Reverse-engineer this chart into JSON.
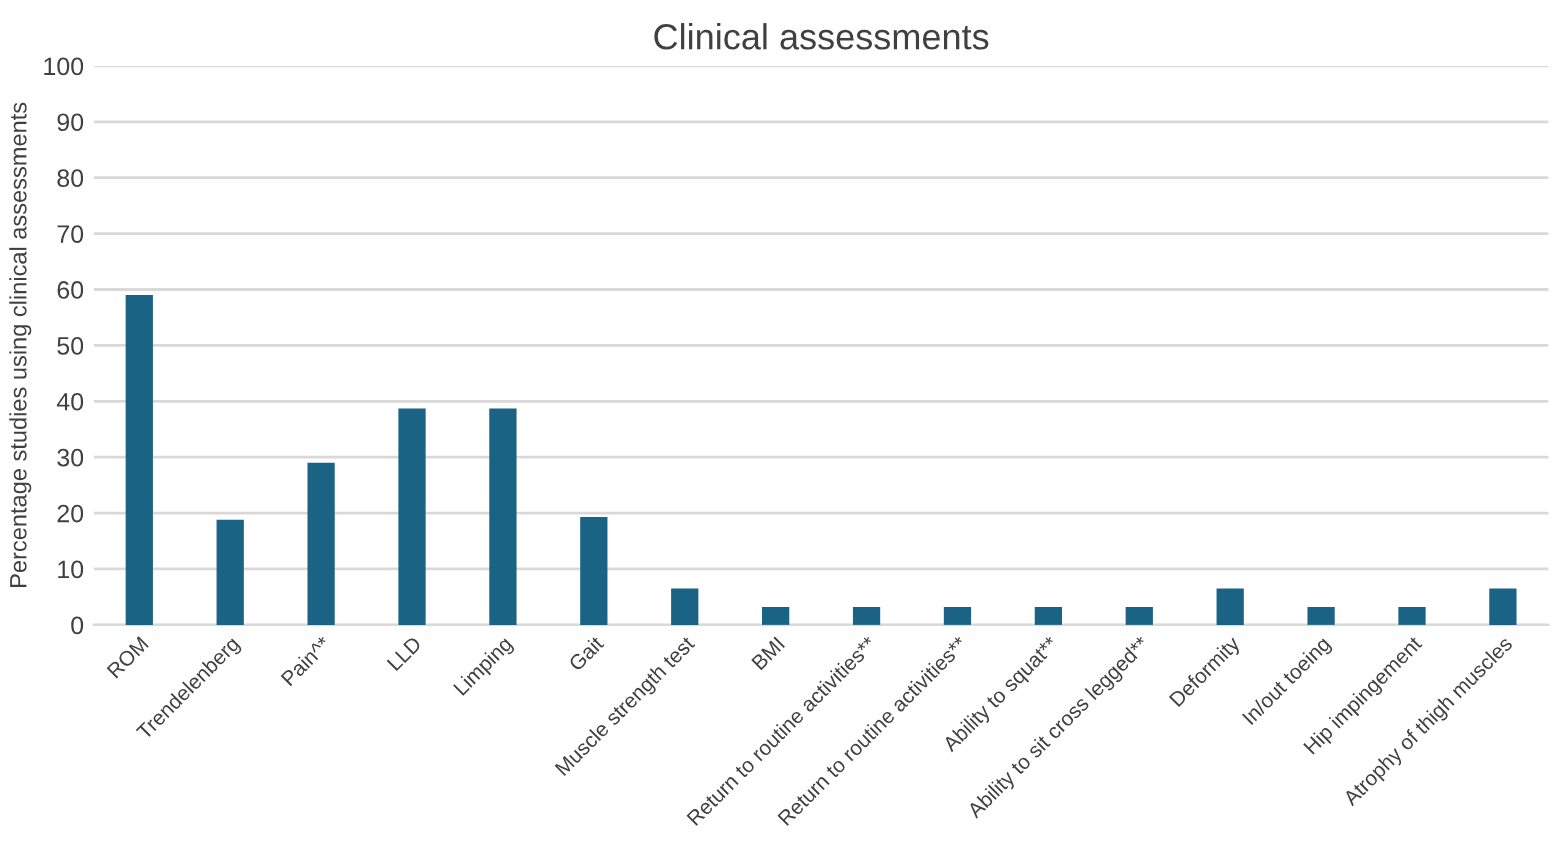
{
  "chart_data": {
    "type": "bar",
    "title": "Clinical assessments",
    "ylabel": "Percentage studies using clinical assessments",
    "categories": [
      "ROM",
      "Trendelenberg",
      "Pain^*",
      "LLD",
      "Limping",
      "Gait",
      "Muscle strength test",
      "BMI",
      "Return to routine activities**",
      "Return to routine activities**",
      "Ability to squat**",
      "Ability to sit cross legged**",
      "Deformity",
      "In/out toeing",
      "Hip impingement",
      "Atrophy of thigh muscles"
    ],
    "values": [
      59,
      18.8,
      29,
      38.7,
      38.7,
      19.3,
      6.5,
      3.2,
      3.2,
      3.2,
      3.2,
      3.2,
      6.5,
      3.2,
      3.2,
      6.5
    ],
    "color": "#1b6384",
    "ylim": [
      0,
      100
    ],
    "yticks": [
      0,
      10,
      20,
      30,
      40,
      50,
      60,
      70,
      80,
      90,
      100
    ],
    "grid": "y",
    "legend": false
  }
}
